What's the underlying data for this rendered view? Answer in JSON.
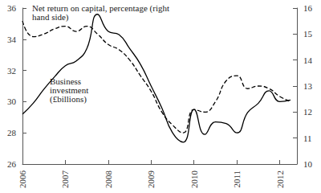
{
  "chart_data": {
    "type": "line",
    "x": [
      2006,
      2006.25,
      2006.5,
      2006.75,
      2007,
      2007.25,
      2007.5,
      2007.75,
      2008,
      2008.25,
      2008.5,
      2008.75,
      2009,
      2009.25,
      2009.5,
      2009.75,
      2010,
      2010.25,
      2010.5,
      2010.75,
      2011,
      2011.25,
      2011.5,
      2011.75,
      2012,
      2012.25
    ],
    "series": [
      {
        "name": "Business investment (£billions)",
        "color": "#000000",
        "line_style": "solid",
        "marker": "none",
        "values": [
          29.2,
          29.9,
          30.8,
          31.6,
          32.3,
          32.6,
          33.4,
          35.6,
          34.5,
          34.3,
          33.4,
          32.4,
          31.0,
          29.6,
          28.0,
          27.4,
          29.5,
          27.9,
          28.7,
          28.6,
          28.0,
          29.3,
          29.9,
          30.7,
          30.0,
          30.1
        ]
      },
      {
        "name": "Net return on capital, percentage (right hand side)",
        "color": "#000000",
        "line_style": "dashed",
        "marker": "none",
        "axis": "y2",
        "values": [
          15.5,
          14.9,
          15.0,
          15.2,
          15.3,
          15.1,
          15.3,
          15.0,
          14.6,
          14.4,
          14.0,
          13.4,
          12.8,
          12.0,
          11.5,
          11.2,
          12.1,
          12.0,
          12.4,
          13.2,
          13.4,
          12.9,
          13.0,
          12.9,
          12.6,
          12.4
        ]
      }
    ],
    "xlim": [
      2006,
      2012.4
    ],
    "xticks": [
      2006,
      2007,
      2008,
      2009,
      2010,
      2011,
      2012
    ],
    "ylim": [
      26,
      36
    ],
    "yticks": [
      26,
      28,
      30,
      32,
      34,
      36
    ],
    "y2lim": [
      10,
      16
    ],
    "y2ticks": [
      10,
      11,
      12,
      13,
      14,
      15,
      16
    ],
    "grid": false
  }
}
